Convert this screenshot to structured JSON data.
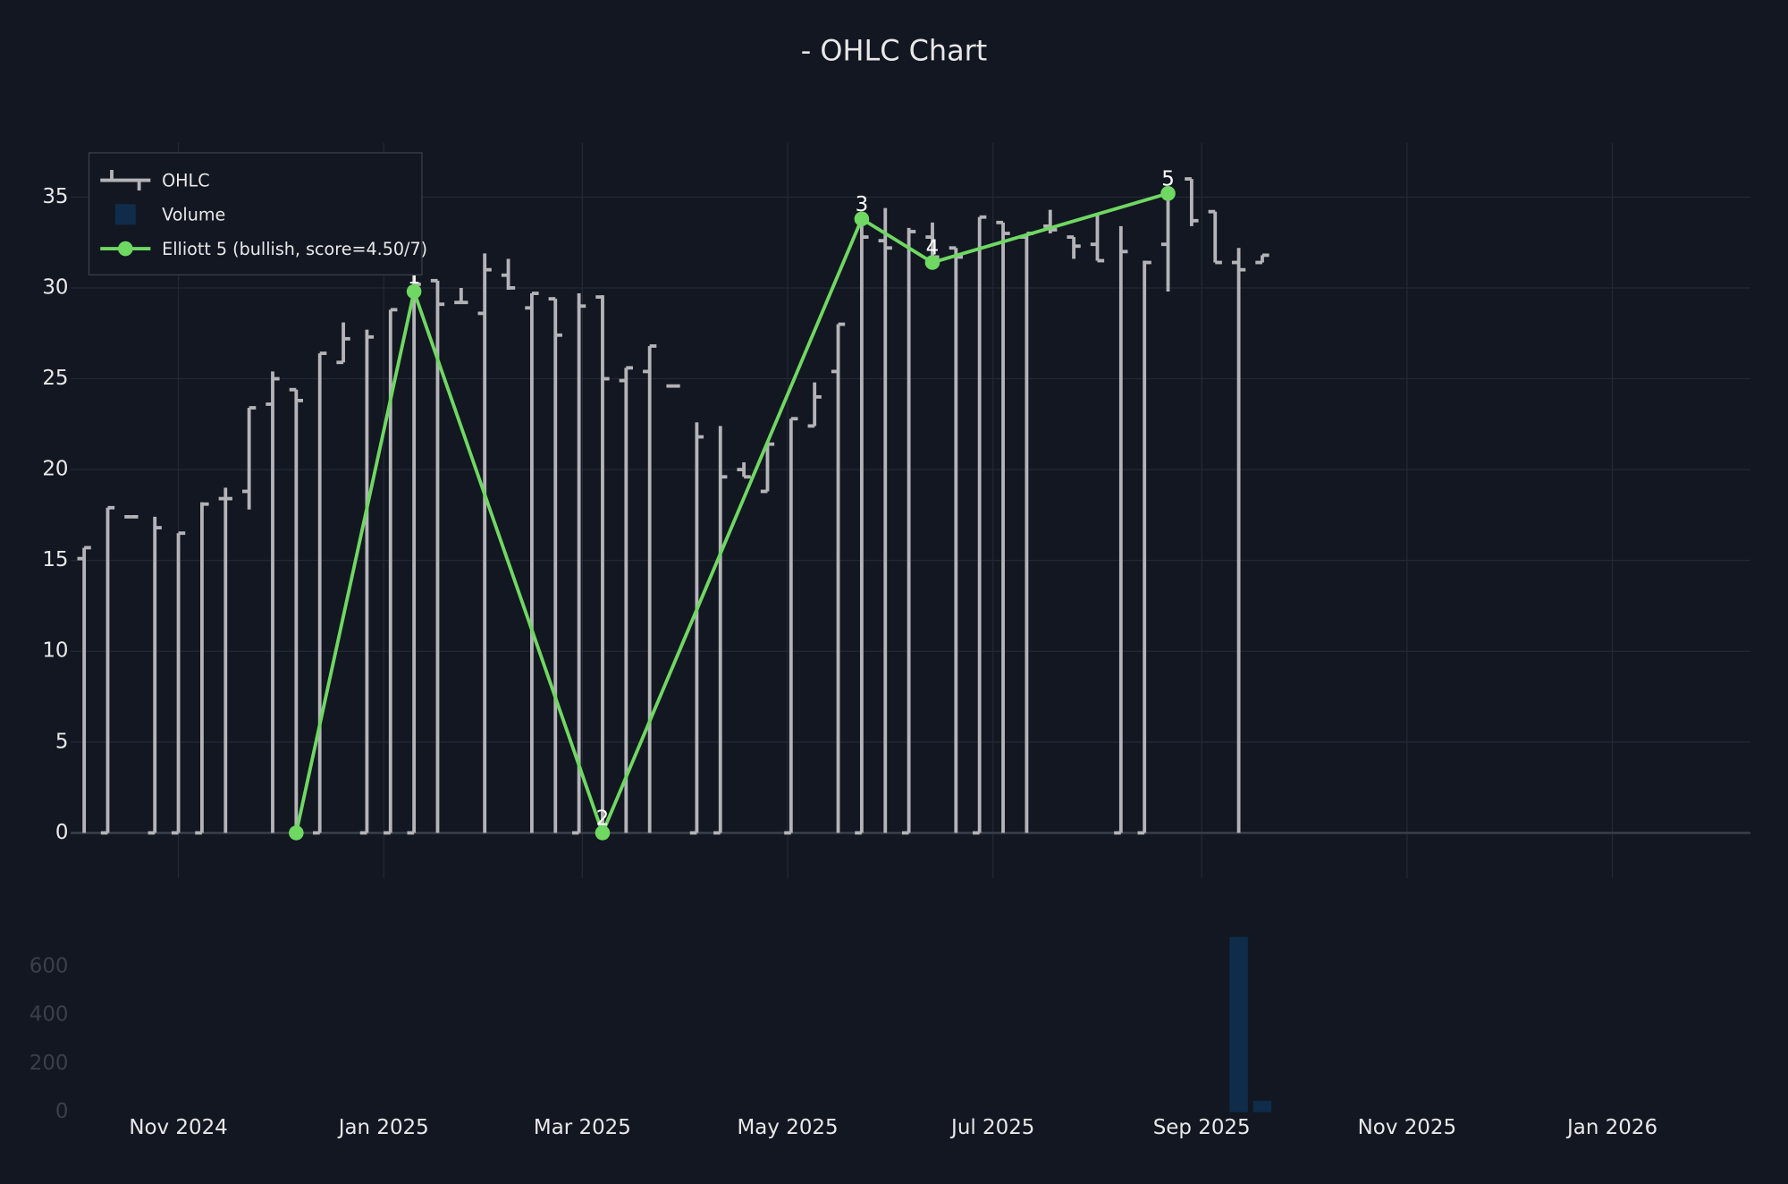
{
  "chart_data": {
    "type": "ohlc",
    "title": "- OHLC Chart",
    "x": [
      "2024-10-04",
      "2024-10-11",
      "2024-10-18",
      "2024-10-25",
      "2024-11-01",
      "2024-11-08",
      "2024-11-15",
      "2024-11-22",
      "2024-11-29",
      "2024-12-06",
      "2024-12-13",
      "2024-12-20",
      "2024-12-27",
      "2025-01-03",
      "2025-01-10",
      "2025-01-17",
      "2025-01-24",
      "2025-01-31",
      "2025-02-07",
      "2025-02-14",
      "2025-02-21",
      "2025-02-28",
      "2025-03-07",
      "2025-03-14",
      "2025-03-21",
      "2025-03-28",
      "2025-04-04",
      "2025-04-11",
      "2025-04-18",
      "2025-04-25",
      "2025-05-02",
      "2025-05-09",
      "2025-05-16",
      "2025-05-23",
      "2025-05-30",
      "2025-06-06",
      "2025-06-13",
      "2025-06-20",
      "2025-06-27",
      "2025-07-04",
      "2025-07-11",
      "2025-07-18",
      "2025-07-25",
      "2025-08-01",
      "2025-08-08",
      "2025-08-15",
      "2025-08-22",
      "2025-08-29",
      "2025-09-05",
      "2025-09-12",
      "2025-09-19"
    ],
    "xlim": [
      "2024-09-30",
      "2026-02-11"
    ],
    "xticks": [
      {
        "value": "2024-11-01",
        "label": "Nov 2024"
      },
      {
        "value": "2025-01-01",
        "label": "Jan 2025"
      },
      {
        "value": "2025-03-01",
        "label": "Mar 2025"
      },
      {
        "value": "2025-05-01",
        "label": "May 2025"
      },
      {
        "value": "2025-07-01",
        "label": "Jul 2025"
      },
      {
        "value": "2025-09-01",
        "label": "Sep 2025"
      },
      {
        "value": "2025-11-01",
        "label": "Nov 2025"
      },
      {
        "value": "2026-01-01",
        "label": "Jan 2026"
      }
    ],
    "ylim": [
      -2.5,
      38
    ],
    "yticks": [
      0,
      5,
      10,
      15,
      20,
      25,
      30,
      35
    ],
    "y2lim": [
      0,
      800
    ],
    "y2ticks": [
      0,
      200,
      400,
      600
    ],
    "grid": true,
    "legend": "top-left",
    "series": [
      {
        "name": "OHLC",
        "type": "ohlc",
        "color": "#b4b4b8",
        "open": [
          15.1,
          0,
          17.4,
          0,
          0,
          0,
          18.4,
          18.8,
          23.6,
          24.4,
          0,
          25.9,
          0,
          0,
          0,
          30.4,
          29.2,
          28.6,
          30.7,
          28.9,
          29.4,
          0,
          29.5,
          24.9,
          25.4,
          24.6,
          0,
          0,
          20.0,
          18.8,
          0,
          22.4,
          25.4,
          0,
          32.6,
          0,
          32.8,
          32.2,
          0,
          33.6,
          32.8,
          33.4,
          32.8,
          32.4,
          0,
          0,
          32.4,
          36.0,
          34.2,
          31.4,
          31.4
        ],
        "high": [
          15.7,
          17.9,
          17.4,
          17.4,
          16.5,
          18.2,
          19.0,
          23.4,
          25.4,
          24.4,
          26.4,
          28.1,
          27.7,
          28.8,
          30.8,
          30.4,
          30.0,
          31.9,
          31.6,
          29.7,
          29.4,
          29.7,
          29.6,
          25.6,
          26.8,
          24.6,
          22.6,
          22.4,
          20.4,
          21.4,
          22.8,
          24.8,
          28.0,
          33.8,
          34.4,
          33.3,
          33.6,
          32.2,
          33.9,
          33.6,
          33.0,
          34.3,
          32.8,
          34.1,
          33.4,
          31.5,
          35.2,
          36.0,
          34.2,
          32.2,
          31.8
        ],
        "low": [
          0,
          0,
          17.4,
          0,
          0,
          0,
          0,
          17.8,
          0,
          0,
          0,
          25.9,
          0,
          0,
          0,
          0,
          29.2,
          0,
          29.9,
          0,
          0,
          0,
          0,
          0,
          0,
          24.6,
          0,
          0,
          19.6,
          18.8,
          0,
          22.4,
          0,
          0,
          0,
          0,
          31.4,
          0,
          0,
          0,
          0,
          33.0,
          31.6,
          31.5,
          0,
          0,
          29.8,
          33.4,
          31.4,
          0,
          31.4
        ],
        "close": [
          15.7,
          17.9,
          17.4,
          16.8,
          16.5,
          18.1,
          18.4,
          23.4,
          25.0,
          23.8,
          26.4,
          27.2,
          27.3,
          28.8,
          30.2,
          29.1,
          29.2,
          31.0,
          30.0,
          29.7,
          27.4,
          29.0,
          25.0,
          25.6,
          26.8,
          24.6,
          21.8,
          19.6,
          19.6,
          21.4,
          22.8,
          24.0,
          28.0,
          32.8,
          32.2,
          33.1,
          31.7,
          31.7,
          33.9,
          33.0,
          33.0,
          33.2,
          32.3,
          31.5,
          32.0,
          31.4,
          35.2,
          33.7,
          31.4,
          31.0,
          31.8
        ]
      },
      {
        "name": "Volume",
        "type": "bar",
        "axis": "y2",
        "color": "#0f2d4a",
        "values": [
          0,
          0,
          0,
          0,
          0,
          0,
          0,
          0,
          0,
          0,
          0,
          0,
          0,
          0,
          0,
          0,
          0,
          0,
          0,
          0,
          0,
          0,
          0,
          0,
          0,
          0,
          0,
          0,
          0,
          0,
          0,
          0,
          0,
          0,
          0,
          0,
          0,
          0,
          0,
          0,
          0,
          0,
          0,
          0,
          0,
          0,
          0,
          0,
          0,
          723,
          47
        ]
      },
      {
        "name": "Elliott 5 (bullish, score=4.50/7)",
        "type": "line",
        "color": "#6fd862",
        "x": [
          "2024-12-06",
          "2025-01-10",
          "2025-03-07",
          "2025-05-23",
          "2025-06-13",
          "2025-08-22"
        ],
        "values": [
          0,
          29.8,
          0,
          33.8,
          31.4,
          35.2
        ],
        "labels": [
          null,
          "1",
          "2",
          "3",
          "4",
          "5"
        ]
      }
    ]
  }
}
